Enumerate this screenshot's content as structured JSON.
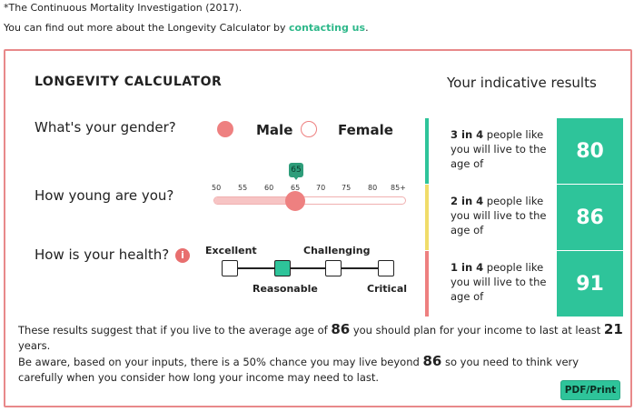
{
  "header": {
    "footnote": "*The Continuous Mortality Investigation (2017).",
    "find_more_prefix": "You can find out more about the Longevity Calculator by ",
    "find_more_link": "contacting us",
    "find_more_suffix": "."
  },
  "calculator": {
    "title": "LONGEVITY CALCULATOR",
    "results_title": "Your indicative results",
    "gender": {
      "question": "What's your gender?",
      "options": [
        {
          "label": "Male",
          "selected": true
        },
        {
          "label": "Female",
          "selected": false
        }
      ]
    },
    "age": {
      "question": "How young are you?",
      "ticks": [
        "50",
        "55",
        "60",
        "65",
        "70",
        "75",
        "80",
        "85+"
      ],
      "value": "65",
      "fraction": 0.43
    },
    "health": {
      "question": "How is your health?",
      "info": "i",
      "options": [
        "Excellent",
        "Reasonable",
        "Challenging",
        "Critical"
      ],
      "selected": "Reasonable"
    },
    "results": [
      {
        "odds": "3 in 4",
        "text": " people like you will live to the age of",
        "age": "80",
        "color": "#2ec49a"
      },
      {
        "odds": "2 in 4",
        "text": " people like you will live to the age of",
        "age": "86",
        "color": "#f0dc6a"
      },
      {
        "odds": "1 in 4",
        "text": " people like you will live to the age of",
        "age": "91",
        "color": "#ee8080"
      }
    ],
    "summary": {
      "p1": "These results suggest that if you live to the average age of ",
      "age": "86",
      "p2": " you should plan for your income to last at least ",
      "years": "21",
      "p3": " years.",
      "p4": "Be aware, based on your inputs, there is a 50% chance you may live beyond ",
      "age2": "86",
      "p5": " so you need to think very carefully when you consider how long your income may need to last."
    },
    "pdf_button": "PDF/Print"
  }
}
